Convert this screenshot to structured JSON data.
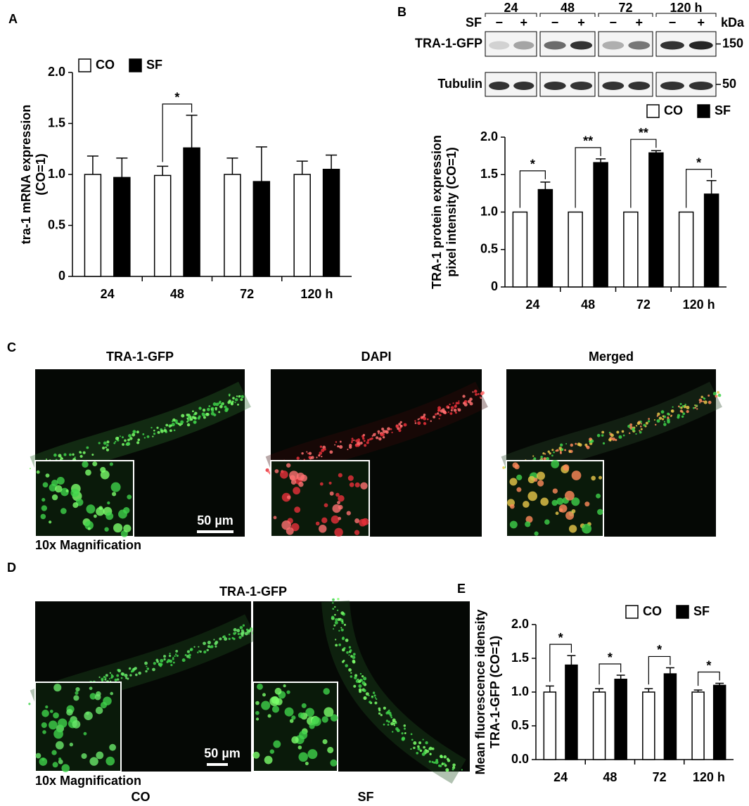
{
  "panels": {
    "a": "A",
    "b": "B",
    "c": "C",
    "d": "D",
    "e": "E"
  },
  "blot": {
    "times": [
      "24",
      "48",
      "72",
      "120 h"
    ],
    "treatment": "SF",
    "signs": [
      "−",
      "+"
    ],
    "unit": "kDa",
    "rows": [
      {
        "label": "TRA-1-GFP",
        "size": "150"
      },
      {
        "label": "Tubulin",
        "size": "50"
      }
    ]
  },
  "panel_c": {
    "titles": [
      "TRA-1-GFP",
      "DAPI",
      "Merged"
    ],
    "scale_bar": "50 µm",
    "caption": "10x Magnification"
  },
  "panel_d": {
    "title": "TRA-1-GFP",
    "scale_bar": "50 µm",
    "caption": "10x Magnification",
    "labels": [
      "CO",
      "SF"
    ]
  },
  "chart_data": [
    {
      "type": "bar",
      "ylabel": [
        "tra-1 mRNA expression",
        "(CO=1)"
      ],
      "categories": [
        "24",
        "48",
        "72",
        "120 h"
      ],
      "series": [
        {
          "name": "CO",
          "color": "#ffffff",
          "values": [
            1.0,
            0.99,
            1.0,
            1.0
          ],
          "errors": [
            0.18,
            0.09,
            0.16,
            0.13
          ]
        },
        {
          "name": "SF",
          "color": "#000000",
          "values": [
            0.97,
            1.26,
            0.93,
            1.05
          ],
          "errors": [
            0.19,
            0.32,
            0.34,
            0.14
          ]
        }
      ],
      "annotations": [
        null,
        "*",
        null,
        null
      ],
      "ylim": [
        0,
        2.0
      ],
      "yticks": [
        0,
        {
          "value": 0.5,
          "label": "0.5"
        },
        {
          "value": 1.0,
          "label": "1.0"
        },
        {
          "value": 1.5,
          "label": "1.5"
        },
        {
          "value": 2.0,
          "label": "2.0"
        }
      ]
    },
    {
      "type": "bar",
      "ylabel": [
        "TRA-1 protein expression",
        "pixel intensity (CO=1)"
      ],
      "categories": [
        "24",
        "48",
        "72",
        "120 h"
      ],
      "series": [
        {
          "name": "CO",
          "color": "#ffffff",
          "values": [
            1,
            1,
            1,
            1
          ]
        },
        {
          "name": "SF",
          "color": "#000000",
          "values": [
            1.3,
            1.66,
            1.79,
            1.24
          ],
          "errors": [
            0.1,
            0.05,
            0.03,
            0.18
          ]
        }
      ],
      "annotations": [
        "*",
        "**",
        "**",
        "*"
      ],
      "ylim": [
        0,
        2.0
      ],
      "yticks": [
        0,
        {
          "value": 0.5,
          "label": "0.5"
        },
        {
          "value": 1.0,
          "label": "1.0"
        },
        {
          "value": 1.5,
          "label": "1.5"
        },
        {
          "value": 2.0,
          "label": "2.0"
        }
      ]
    },
    {
      "type": "bar",
      "ylabel": [
        "Mean fluorescence idensity",
        "TRA-1-GFP (CO=1)"
      ],
      "categories": [
        "24",
        "48",
        "72",
        "120 h"
      ],
      "series": [
        {
          "name": "CO",
          "color": "#ffffff",
          "values": [
            1.0,
            1.0,
            1.0,
            1.0
          ],
          "errors": [
            0.09,
            0.05,
            0.05,
            0.03
          ]
        },
        {
          "name": "SF",
          "color": "#000000",
          "values": [
            1.4,
            1.19,
            1.27,
            1.1
          ],
          "errors": [
            0.14,
            0.06,
            0.09,
            0.03
          ]
        }
      ],
      "annotations": [
        "*",
        "*",
        "*",
        "*"
      ],
      "ylim": [
        0,
        2.0
      ],
      "yticks": [
        {
          "value": 0.0,
          "label": "0.0"
        },
        {
          "value": 0.5,
          "label": "0.5"
        },
        {
          "value": 1.0,
          "label": "1.0"
        },
        {
          "value": 1.5,
          "label": "1.5"
        },
        {
          "value": 2.0,
          "label": "2.0"
        }
      ]
    }
  ]
}
